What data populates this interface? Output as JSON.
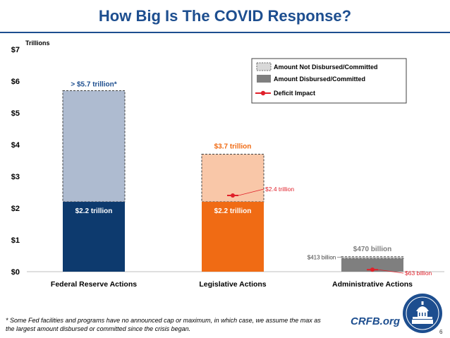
{
  "header": {
    "title": "How Big Is The COVID Response?"
  },
  "chart_data": {
    "type": "bar",
    "title": "How Big Is The COVID Response?",
    "ylabel": "Trillions",
    "ylim": [
      0,
      7
    ],
    "yticks": [
      "$0",
      "$1",
      "$2",
      "$3",
      "$4",
      "$5",
      "$6",
      "$7"
    ],
    "categories": [
      "Federal Reserve Actions",
      "Legislative Actions",
      "Administrative Actions"
    ],
    "series": [
      {
        "name": "Amount Disbursed/Committed",
        "values": [
          2.2,
          2.2,
          0.413
        ]
      },
      {
        "name": "Amount Not Disbursed/Committed",
        "values": [
          3.5,
          1.5,
          0.057
        ]
      },
      {
        "name": "Deficit Impact",
        "values": [
          null,
          2.4,
          0.063
        ]
      }
    ],
    "total_labels": [
      "> $5.7 trillion*",
      "$3.7 trillion",
      "$470 billion"
    ],
    "disbursed_labels": [
      "$2.2 trillion",
      "$2.2 trillion",
      "$413 billion"
    ],
    "deficit_labels": [
      "",
      "$2.4 trillion",
      "$63 billion"
    ],
    "bar_colors": {
      "disbursed": [
        "#0d3a6e",
        "#f06b14",
        "#7f7f7f"
      ],
      "not_disbursed": [
        "#aebbd0",
        "#f9c7a8",
        "#d3d3d3"
      ],
      "deficit": "#e0202a"
    },
    "legend": {
      "position": "top-right",
      "entries": [
        "Amount Not Disbursed/Committed",
        "Amount Disbursed/Committed",
        "Deficit Impact"
      ]
    }
  },
  "footer": {
    "footnote": "* Some Fed facilities and programs have no announced cap or maximum, in which case, we assume the max as the largest amount disbursed or committed since the crisis began.",
    "brand": "CRFB.org",
    "page": "6"
  }
}
